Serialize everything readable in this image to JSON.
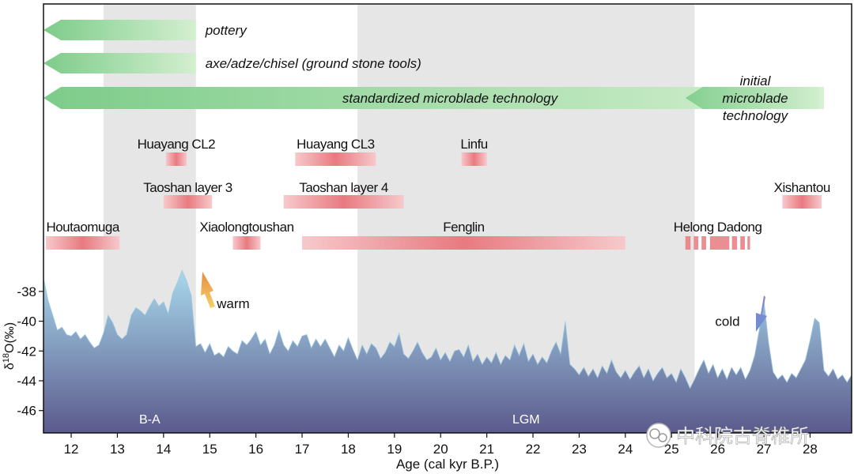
{
  "chart_data": {
    "type": "area",
    "xlabel": "Age (cal kyr B.P.)",
    "ylabel": "δ18O(‰)",
    "ylabel_parts": {
      "delta": "δ",
      "sup": "18",
      "rest": "O(‰)"
    },
    "xlim": [
      11.4,
      28.9
    ],
    "ylim": [
      -47.5,
      -37.0
    ],
    "x_ticks": [
      12,
      13,
      14,
      15,
      16,
      17,
      18,
      19,
      20,
      21,
      22,
      23,
      24,
      25,
      26,
      27,
      28
    ],
    "y_ticks": [
      -38,
      -40,
      -42,
      -44,
      -46
    ],
    "shaded_periods": [
      {
        "label": "B-A",
        "start": 12.7,
        "end": 14.7
      },
      {
        "label": "LGM",
        "start": 18.2,
        "end": 25.5
      }
    ],
    "technology_bands": [
      {
        "label": "pottery",
        "start": 11.4,
        "end": 14.7,
        "direction": "left"
      },
      {
        "label": "axe/adze/chisel (ground stone tools)",
        "start": 11.4,
        "end": 14.7,
        "direction": "left"
      },
      {
        "label": "standardized microblade technology",
        "start": 11.4,
        "end": 28.2,
        "direction": "left"
      },
      {
        "label": "initial\nmicroblade\ntechnology",
        "start": 25.3,
        "end": 28.3,
        "direction": "left"
      }
    ],
    "sites": [
      {
        "name": "Huayang CL2",
        "start": 14.05,
        "end": 14.5,
        "row": 1
      },
      {
        "name": "Huayang CL3",
        "start": 16.85,
        "end": 18.6,
        "row": 1
      },
      {
        "name": "Linfu",
        "start": 20.45,
        "end": 21.0,
        "row": 1
      },
      {
        "name": "Taoshan layer 3",
        "start": 14.0,
        "end": 15.05,
        "row": 2
      },
      {
        "name": "Taoshan layer 4",
        "start": 16.6,
        "end": 19.2,
        "row": 2
      },
      {
        "name": "Xishantou",
        "start": 27.4,
        "end": 28.25,
        "row": 2
      },
      {
        "name": "Houtaomuga",
        "start": 11.45,
        "end": 13.05,
        "row": 3
      },
      {
        "name": "Xiaolongtoushan",
        "start": 15.5,
        "end": 16.1,
        "row": 3
      },
      {
        "name": "Fenglin",
        "start": 17.0,
        "end": 24.0,
        "row": 3
      },
      {
        "name": "Helong Dadong",
        "start": 25.3,
        "end": 26.7,
        "row": 3,
        "dashed": true
      }
    ],
    "annotations": [
      {
        "text": "warm",
        "x": 15.05,
        "y": -38.8
      },
      {
        "text": "cold",
        "x": 26.15,
        "y": -40.0
      }
    ],
    "series": [
      {
        "values": [
          [
            11.4,
            -37.1
          ],
          [
            11.5,
            -38.6
          ],
          [
            11.6,
            -39.6
          ],
          [
            11.7,
            -40.6
          ],
          [
            11.8,
            -40.4
          ],
          [
            11.9,
            -40.9
          ],
          [
            12.0,
            -41.0
          ],
          [
            12.1,
            -40.7
          ],
          [
            12.2,
            -41.2
          ],
          [
            12.3,
            -40.9
          ],
          [
            12.4,
            -41.4
          ],
          [
            12.5,
            -41.8
          ],
          [
            12.6,
            -41.6
          ],
          [
            12.7,
            -40.8
          ],
          [
            12.8,
            -39.6
          ],
          [
            12.9,
            -40.1
          ],
          [
            13.0,
            -40.9
          ],
          [
            13.1,
            -41.2
          ],
          [
            13.2,
            -40.9
          ],
          [
            13.3,
            -39.6
          ],
          [
            13.4,
            -39.1
          ],
          [
            13.5,
            -39.3
          ],
          [
            13.6,
            -39.6
          ],
          [
            13.7,
            -39.0
          ],
          [
            13.8,
            -38.5
          ],
          [
            13.9,
            -39.0
          ],
          [
            14.0,
            -38.7
          ],
          [
            14.1,
            -39.5
          ],
          [
            14.2,
            -38.1
          ],
          [
            14.3,
            -37.4
          ],
          [
            14.4,
            -36.6
          ],
          [
            14.5,
            -37.3
          ],
          [
            14.6,
            -38.3
          ],
          [
            14.7,
            -41.7
          ],
          [
            14.8,
            -41.5
          ],
          [
            14.9,
            -42.1
          ],
          [
            15.0,
            -41.5
          ],
          [
            15.1,
            -42.3
          ],
          [
            15.2,
            -42.1
          ],
          [
            15.3,
            -42.4
          ],
          [
            15.4,
            -41.7
          ],
          [
            15.5,
            -42.0
          ],
          [
            15.6,
            -42.2
          ],
          [
            15.7,
            -41.3
          ],
          [
            15.8,
            -41.6
          ],
          [
            15.9,
            -41.2
          ],
          [
            16.0,
            -40.7
          ],
          [
            16.1,
            -41.6
          ],
          [
            16.2,
            -41.2
          ],
          [
            16.3,
            -42.2
          ],
          [
            16.4,
            -41.6
          ],
          [
            16.5,
            -40.6
          ],
          [
            16.6,
            -41.6
          ],
          [
            16.7,
            -42.0
          ],
          [
            16.8,
            -41.3
          ],
          [
            16.9,
            -41.7
          ],
          [
            17.0,
            -41.0
          ],
          [
            17.1,
            -40.9
          ],
          [
            17.2,
            -41.8
          ],
          [
            17.3,
            -41.2
          ],
          [
            17.4,
            -41.7
          ],
          [
            17.5,
            -41.2
          ],
          [
            17.6,
            -41.8
          ],
          [
            17.7,
            -42.4
          ],
          [
            17.8,
            -41.6
          ],
          [
            17.9,
            -42.0
          ],
          [
            18.0,
            -41.1
          ],
          [
            18.1,
            -41.9
          ],
          [
            18.2,
            -42.6
          ],
          [
            18.3,
            -41.6
          ],
          [
            18.4,
            -42.2
          ],
          [
            18.5,
            -41.5
          ],
          [
            18.6,
            -41.8
          ],
          [
            18.7,
            -42.5
          ],
          [
            18.8,
            -42.1
          ],
          [
            18.9,
            -41.4
          ],
          [
            19.0,
            -41.7
          ],
          [
            19.1,
            -40.8
          ],
          [
            19.2,
            -42.2
          ],
          [
            19.3,
            -42.5
          ],
          [
            19.4,
            -42.0
          ],
          [
            19.5,
            -41.4
          ],
          [
            19.6,
            -42.1
          ],
          [
            19.7,
            -42.6
          ],
          [
            19.8,
            -42.4
          ],
          [
            19.9,
            -41.8
          ],
          [
            20.0,
            -42.6
          ],
          [
            20.1,
            -42.1
          ],
          [
            20.2,
            -42.7
          ],
          [
            20.3,
            -42.0
          ],
          [
            20.4,
            -41.9
          ],
          [
            20.5,
            -42.4
          ],
          [
            20.6,
            -41.6
          ],
          [
            20.7,
            -42.7
          ],
          [
            20.8,
            -42.2
          ],
          [
            20.9,
            -42.9
          ],
          [
            21.0,
            -42.4
          ],
          [
            21.1,
            -42.8
          ],
          [
            21.2,
            -42.1
          ],
          [
            21.3,
            -42.9
          ],
          [
            21.4,
            -42.3
          ],
          [
            21.5,
            -42.6
          ],
          [
            21.6,
            -41.6
          ],
          [
            21.7,
            -42.3
          ],
          [
            21.8,
            -41.5
          ],
          [
            21.9,
            -42.7
          ],
          [
            22.0,
            -42.2
          ],
          [
            22.1,
            -42.9
          ],
          [
            22.2,
            -42.4
          ],
          [
            22.3,
            -42.8
          ],
          [
            22.4,
            -42.0
          ],
          [
            22.5,
            -41.4
          ],
          [
            22.6,
            -42.2
          ],
          [
            22.7,
            -40.0
          ],
          [
            22.8,
            -42.9
          ],
          [
            22.9,
            -43.2
          ],
          [
            23.0,
            -43.6
          ],
          [
            23.1,
            -43.1
          ],
          [
            23.2,
            -43.7
          ],
          [
            23.3,
            -43.2
          ],
          [
            23.4,
            -43.8
          ],
          [
            23.5,
            -43.0
          ],
          [
            23.6,
            -43.5
          ],
          [
            23.7,
            -42.6
          ],
          [
            23.8,
            -43.4
          ],
          [
            23.9,
            -43.8
          ],
          [
            24.0,
            -43.3
          ],
          [
            24.1,
            -43.9
          ],
          [
            24.2,
            -43.4
          ],
          [
            24.3,
            -43.0
          ],
          [
            24.4,
            -43.8
          ],
          [
            24.5,
            -43.2
          ],
          [
            24.6,
            -44.0
          ],
          [
            24.7,
            -43.5
          ],
          [
            24.8,
            -43.1
          ],
          [
            24.9,
            -43.8
          ],
          [
            25.0,
            -43.5
          ],
          [
            25.1,
            -44.1
          ],
          [
            25.2,
            -43.2
          ],
          [
            25.3,
            -43.8
          ],
          [
            25.4,
            -44.5
          ],
          [
            25.5,
            -43.9
          ],
          [
            25.6,
            -43.2
          ],
          [
            25.7,
            -42.6
          ],
          [
            25.8,
            -43.5
          ],
          [
            25.9,
            -42.9
          ],
          [
            26.0,
            -43.8
          ],
          [
            26.1,
            -43.2
          ],
          [
            26.2,
            -43.9
          ],
          [
            26.3,
            -43.1
          ],
          [
            26.4,
            -43.6
          ],
          [
            26.5,
            -43.1
          ],
          [
            26.6,
            -43.9
          ],
          [
            26.7,
            -43.3
          ],
          [
            26.8,
            -42.3
          ],
          [
            26.9,
            -40.6
          ],
          [
            27.0,
            -38.6
          ],
          [
            27.1,
            -41.4
          ],
          [
            27.2,
            -43.4
          ],
          [
            27.3,
            -43.9
          ],
          [
            27.4,
            -43.6
          ],
          [
            27.5,
            -44.1
          ],
          [
            27.6,
            -43.5
          ],
          [
            27.7,
            -43.8
          ],
          [
            27.8,
            -43.2
          ],
          [
            27.9,
            -42.6
          ],
          [
            28.0,
            -41.3
          ],
          [
            28.1,
            -39.8
          ],
          [
            28.2,
            -40.1
          ],
          [
            28.3,
            -43.3
          ],
          [
            28.4,
            -43.7
          ],
          [
            28.5,
            -43.2
          ],
          [
            28.6,
            -43.9
          ],
          [
            28.7,
            -43.6
          ],
          [
            28.8,
            -44.1
          ],
          [
            28.9,
            -43.6
          ]
        ]
      }
    ]
  },
  "watermark": {
    "text": "中科院古脊椎所"
  },
  "colors": {
    "period_shade": "#e6e6e6",
    "area_top": "#a8d8ec",
    "area_bottom": "#5b5a8c",
    "band_green": "#7dcc8a",
    "band_green_light": "#d3efcf",
    "site_red": "#e87a80",
    "site_red_light": "#f7c9cb",
    "warm_arrow": "#e98a3f",
    "cold_arrow": "#8a86c8"
  }
}
